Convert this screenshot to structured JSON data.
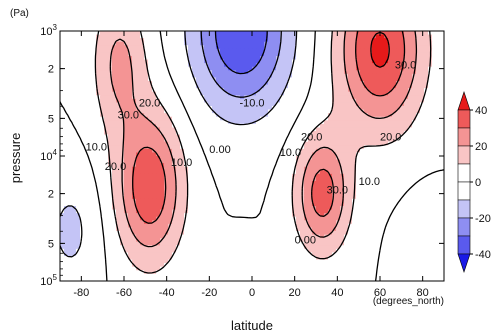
{
  "chart_data": {
    "type": "contour",
    "xlabel": "latitude",
    "ylabel": "pressure",
    "x_unit_label": "(degrees_north)",
    "y_unit_label": "(Pa)",
    "xlim": [
      -90,
      90
    ],
    "ylim_pa": [
      1000,
      100000
    ],
    "yscale": "log",
    "x_ticks": [
      -80,
      -60,
      -40,
      -20,
      0,
      20,
      40,
      60,
      80
    ],
    "x_tick_labels": [
      "-80",
      "-60",
      "-40",
      "-20",
      "0",
      "20",
      "40",
      "60",
      "80"
    ],
    "y_ticks": [
      {
        "value": 1000,
        "mant": "10",
        "exp": "3"
      },
      {
        "value": 2000,
        "mant": "2",
        "exp": ""
      },
      {
        "value": 5000,
        "mant": "5",
        "exp": ""
      },
      {
        "value": 10000,
        "mant": "10",
        "exp": "4"
      },
      {
        "value": 20000,
        "mant": "2",
        "exp": ""
      },
      {
        "value": 50000,
        "mant": "5",
        "exp": ""
      },
      {
        "value": 100000,
        "mant": "10",
        "exp": "5"
      }
    ],
    "colorbar": {
      "ticks": [
        40,
        20,
        0,
        -20,
        -40
      ],
      "tick_labels": [
        "40",
        "20",
        "0",
        "-20",
        "-40"
      ],
      "range": [
        -50,
        50
      ],
      "colors": [
        "#1a1ae6",
        "#5a5aee",
        "#8e8ef2",
        "#c4c4f6",
        "#ffffff",
        "#ffffff",
        "#f9c5c5",
        "#f49494",
        "#ee5a5a",
        "#e61a1a"
      ]
    },
    "contour_labels": [
      {
        "text": "30.0",
        "lat": -58,
        "p": 5000
      },
      {
        "text": "20.0",
        "lat": -48,
        "p": 4000
      },
      {
        "text": "10.0",
        "lat": -73,
        "p": 9000
      },
      {
        "text": "20.0",
        "lat": -64,
        "p": 13000
      },
      {
        "text": "10.0",
        "lat": -33,
        "p": 12000
      },
      {
        "text": "0.00",
        "lat": -15,
        "p": 9500
      },
      {
        "text": "-10.0",
        "lat": 0,
        "p": 4000
      },
      {
        "text": "10.0",
        "lat": 18,
        "p": 10000
      },
      {
        "text": "20.0",
        "lat": 28,
        "p": 7500
      },
      {
        "text": "20.0",
        "lat": 65,
        "p": 7500
      },
      {
        "text": "30.0",
        "lat": 72,
        "p": 2000
      },
      {
        "text": "30.0",
        "lat": 40,
        "p": 20000
      },
      {
        "text": "10.0",
        "lat": 55,
        "p": 17000
      },
      {
        "text": "0.00",
        "lat": 25,
        "p": 50000
      }
    ],
    "fields": {
      "u_wind_levels": [
        -40,
        -30,
        -20,
        -10,
        0,
        10,
        20,
        30,
        40
      ]
    }
  }
}
